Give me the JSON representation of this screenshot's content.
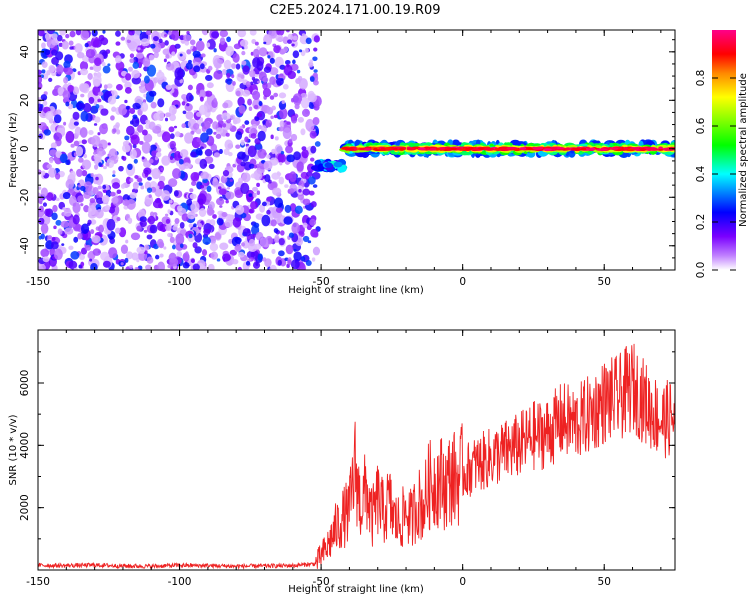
{
  "title": "C2E5.2024.171.00.19.R09",
  "chart_data": [
    {
      "type": "heatmap",
      "name": "spectrogram",
      "xlabel": "Height of straight line (km)",
      "ylabel": "Frequency (Hz)",
      "xlim": [
        -150,
        75
      ],
      "ylim": [
        -50,
        49
      ],
      "x_ticks": [
        -150,
        -100,
        -50,
        0,
        50
      ],
      "y_ticks": [
        -40,
        -20,
        0,
        20,
        40
      ],
      "colorbar": {
        "label": "Normalized spectral amplitude",
        "range": [
          0,
          1
        ],
        "ticks": [
          "0.0",
          "0.2",
          "0.4",
          "0.6",
          "0.8"
        ],
        "colors": [
          "#ffffff",
          "#8800ff",
          "#0000ff",
          "#00ffff",
          "#00ff00",
          "#ffff00",
          "#ff8800",
          "#ff0000",
          "#ff0088"
        ]
      },
      "regions": [
        {
          "x_range": [
            -150,
            -51
          ],
          "freq_range": [
            -50,
            49
          ],
          "amplitude": "0.0-0.25 (noise)"
        },
        {
          "x_range": [
            -52,
            -42
          ],
          "freq_center": -7,
          "amplitude": "0.2-0.4"
        },
        {
          "x_range": [
            -42,
            75
          ],
          "freq_center": 0,
          "amplitude": "0.3-1.0"
        }
      ]
    },
    {
      "type": "line",
      "name": "snr",
      "xlabel": "Height of straight line (km)",
      "ylabel": "SNR (10 * v/v)",
      "xlim": [
        -150,
        75
      ],
      "ylim": [
        0,
        7700
      ],
      "x_ticks": [
        -150,
        -100,
        -50,
        0,
        50
      ],
      "y_ticks": [
        2000,
        4000,
        6000
      ],
      "color": "#ee2222",
      "series": [
        {
          "x": [
            -150,
            -140,
            -130,
            -120,
            -110,
            -100,
            -90,
            -80,
            -70,
            -60,
            -52,
            -48,
            -45,
            -42,
            -40,
            -38,
            -36,
            -34,
            -32,
            -30,
            -28,
            -26,
            -24,
            -22,
            -20,
            -18,
            -16,
            -14,
            -12,
            -10,
            -8,
            -6,
            -4,
            -2,
            0,
            5,
            10,
            15,
            20,
            25,
            30,
            35,
            40,
            45,
            50,
            55,
            60,
            65,
            70,
            75
          ],
          "values": [
            150,
            140,
            160,
            130,
            120,
            150,
            140,
            120,
            130,
            140,
            200,
            700,
            1300,
            1700,
            1900,
            3300,
            2000,
            2600,
            1600,
            2300,
            1800,
            2200,
            1600,
            1500,
            1900,
            1600,
            2200,
            2000,
            2700,
            2800,
            2900,
            2700,
            3000,
            2900,
            3100,
            3400,
            3600,
            3800,
            4000,
            4300,
            4400,
            4800,
            4700,
            5000,
            5400,
            5500,
            5900,
            5300,
            4800,
            4900
          ]
        }
      ]
    }
  ]
}
